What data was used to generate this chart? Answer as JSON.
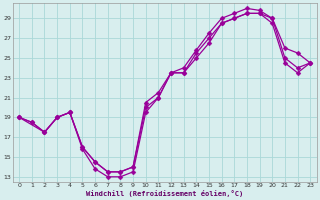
{
  "xlabel": "Windchill (Refroidissement éolien,°C)",
  "background_color": "#d8eeee",
  "grid_color": "#aad8d8",
  "line_color": "#990099",
  "xlim": [
    -0.5,
    23.5
  ],
  "ylim": [
    12.5,
    30.5
  ],
  "xticks": [
    0,
    1,
    2,
    3,
    4,
    5,
    6,
    7,
    8,
    9,
    10,
    11,
    12,
    13,
    14,
    15,
    16,
    17,
    18,
    19,
    20,
    21,
    22,
    23
  ],
  "yticks": [
    13,
    15,
    17,
    19,
    21,
    23,
    25,
    27,
    29
  ],
  "line1_x": [
    0,
    1,
    2,
    3,
    4,
    5,
    6,
    7,
    8,
    9,
    10,
    11,
    12,
    13,
    14,
    15,
    16,
    17,
    18,
    19,
    20,
    21,
    22,
    23
  ],
  "line1_y": [
    19,
    18.5,
    17.5,
    19.0,
    19.5,
    15.8,
    13.8,
    13.0,
    13.0,
    13.5,
    19.5,
    21.0,
    23.5,
    23.5,
    25.5,
    27.0,
    28.5,
    29.0,
    29.5,
    29.5,
    29.0,
    26.0,
    25.5,
    24.5
  ],
  "line2_x": [
    0,
    1,
    2,
    3,
    4,
    5,
    6,
    7,
    8,
    9,
    10,
    11,
    12,
    13,
    14,
    15,
    16,
    17,
    18,
    19,
    20,
    21,
    22,
    23
  ],
  "line2_y": [
    19,
    18.5,
    17.5,
    19.0,
    19.5,
    16.0,
    14.5,
    13.5,
    13.5,
    14.0,
    20.5,
    21.5,
    23.5,
    24.0,
    25.8,
    27.5,
    29.0,
    29.5,
    30.0,
    29.8,
    29.0,
    25.0,
    24.0,
    24.5
  ],
  "line3_x": [
    0,
    2,
    3,
    4,
    5,
    6,
    7,
    8,
    9,
    10,
    11,
    12,
    13,
    14,
    15,
    16,
    17,
    18,
    19,
    20,
    21,
    22,
    23
  ],
  "line3_y": [
    19,
    17.5,
    19.0,
    19.5,
    16.0,
    14.5,
    13.5,
    13.5,
    14.0,
    20.0,
    21.0,
    23.5,
    23.5,
    25.0,
    26.5,
    28.5,
    29.0,
    29.5,
    29.5,
    28.5,
    24.5,
    23.5,
    24.5
  ]
}
